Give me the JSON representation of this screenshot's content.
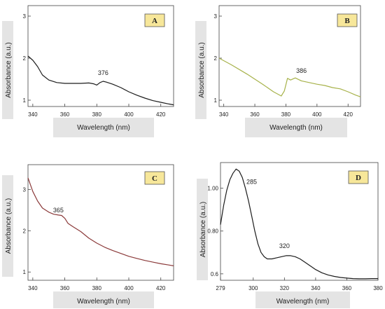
{
  "chart_data": [
    {
      "type": "line",
      "panel_label": "A",
      "xlabel": "Wavelength (nm)",
      "ylabel": "Absorbance (a.u.)",
      "xlim": [
        337,
        428
      ],
      "ylim": [
        0.85,
        3.25
      ],
      "x_ticks": [
        340,
        360,
        380,
        400,
        420
      ],
      "y_ticks": [
        1,
        2,
        3
      ],
      "annotations": [
        {
          "text": "376",
          "x": 384,
          "y": 1.6
        }
      ],
      "series": [
        {
          "color": "#1c1c1c",
          "x": [
            337,
            340,
            343,
            346,
            350,
            355,
            360,
            365,
            370,
            375,
            378,
            380,
            382,
            384,
            386,
            390,
            395,
            400,
            405,
            410,
            415,
            420,
            425,
            428
          ],
          "y": [
            2.05,
            1.95,
            1.8,
            1.6,
            1.48,
            1.42,
            1.4,
            1.4,
            1.4,
            1.41,
            1.39,
            1.36,
            1.42,
            1.45,
            1.43,
            1.38,
            1.3,
            1.2,
            1.12,
            1.05,
            0.99,
            0.95,
            0.91,
            0.89
          ]
        }
      ]
    },
    {
      "type": "line",
      "panel_label": "B",
      "xlabel": "Wavelength (nm)",
      "ylabel": "Absorbance (a.u.)",
      "xlim": [
        337,
        428
      ],
      "ylim": [
        0.85,
        3.25
      ],
      "x_ticks": [
        340,
        360,
        380,
        400,
        420
      ],
      "y_ticks": [
        1,
        2,
        3
      ],
      "annotations": [
        {
          "text": "386",
          "x": 390,
          "y": 1.65
        }
      ],
      "series": [
        {
          "color": "#a7b24a",
          "x": [
            337,
            345,
            355,
            365,
            372,
            377,
            379,
            381,
            383,
            386,
            390,
            395,
            400,
            405,
            410,
            415,
            420,
            425,
            428
          ],
          "y": [
            2.0,
            1.84,
            1.62,
            1.38,
            1.2,
            1.1,
            1.22,
            1.52,
            1.48,
            1.53,
            1.46,
            1.42,
            1.38,
            1.35,
            1.3,
            1.27,
            1.2,
            1.12,
            1.08
          ]
        }
      ]
    },
    {
      "type": "line",
      "panel_label": "C",
      "xlabel": "Wavelength (nm)",
      "ylabel": "Absorbance (a.u.)",
      "xlim": [
        337,
        428
      ],
      "ylim": [
        0.8,
        3.6
      ],
      "x_ticks": [
        340,
        360,
        380,
        400,
        420
      ],
      "y_ticks": [
        1,
        2,
        3
      ],
      "annotations": [
        {
          "text": "365",
          "x": 356,
          "y": 2.45
        }
      ],
      "series": [
        {
          "color": "#8b3a3a",
          "x": [
            337,
            340,
            343,
            346,
            350,
            353,
            356,
            358,
            360,
            362,
            365,
            370,
            375,
            380,
            385,
            390,
            395,
            400,
            405,
            410,
            415,
            420,
            425,
            428
          ],
          "y": [
            3.28,
            2.95,
            2.72,
            2.55,
            2.45,
            2.4,
            2.38,
            2.37,
            2.3,
            2.18,
            2.1,
            1.98,
            1.82,
            1.7,
            1.6,
            1.52,
            1.45,
            1.38,
            1.33,
            1.28,
            1.24,
            1.2,
            1.17,
            1.15
          ]
        }
      ]
    },
    {
      "type": "line",
      "panel_label": "D",
      "xlabel": "Wavelength (nm)",
      "ylabel": "Absorbance (a.u.)",
      "xlim": [
        279,
        380
      ],
      "ylim": [
        0.57,
        1.12
      ],
      "x_ticks": [
        279,
        300,
        320,
        340,
        360,
        380
      ],
      "x_tick_labels": [
        "279",
        "300",
        "320",
        "340",
        "360",
        "380"
      ],
      "y_ticks": [
        0.6,
        0.8,
        1.0
      ],
      "y_tick_labels": [
        "0.6",
        "0.80",
        "1.00"
      ],
      "annotations": [
        {
          "text": "285",
          "x": 299,
          "y": 1.02
        },
        {
          "text": "320",
          "x": 320,
          "y": 0.72
        }
      ],
      "series": [
        {
          "color": "#1c1c1c",
          "x": [
            279,
            281,
            283,
            285,
            287,
            289,
            291,
            293,
            295,
            297,
            299,
            301,
            303,
            305,
            307,
            309,
            312,
            315,
            318,
            321,
            324,
            327,
            330,
            333,
            336,
            340,
            344,
            348,
            352,
            356,
            360,
            364,
            368,
            372,
            376,
            380
          ],
          "y": [
            0.83,
            0.92,
            0.99,
            1.04,
            1.07,
            1.09,
            1.08,
            1.05,
            1.0,
            0.94,
            0.87,
            0.8,
            0.74,
            0.7,
            0.68,
            0.67,
            0.67,
            0.675,
            0.68,
            0.685,
            0.685,
            0.68,
            0.67,
            0.655,
            0.64,
            0.62,
            0.605,
            0.595,
            0.588,
            0.583,
            0.58,
            0.578,
            0.577,
            0.577,
            0.578,
            0.578
          ]
        }
      ]
    }
  ]
}
